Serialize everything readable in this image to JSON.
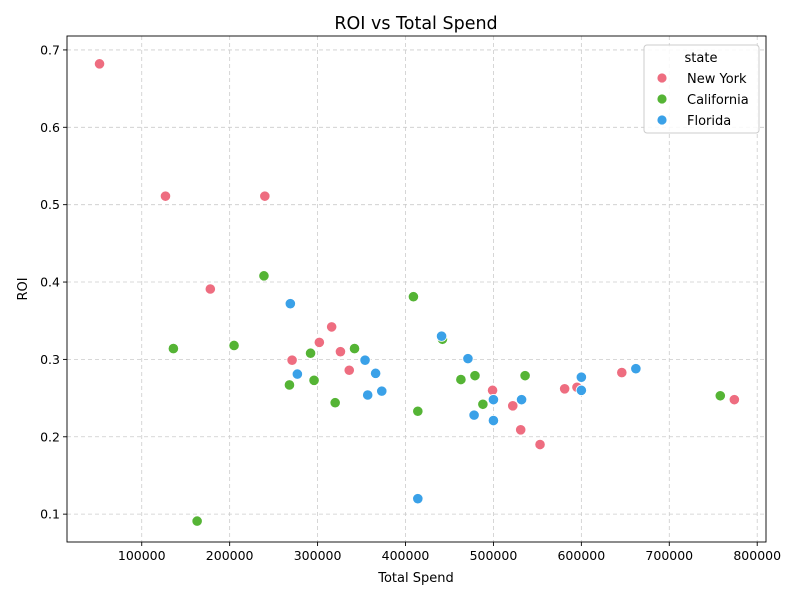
{
  "chart_data": {
    "type": "scatter",
    "title": "ROI vs Total Spend",
    "xlabel": "Total Spend",
    "ylabel": "ROI",
    "xlim": [
      15000,
      810000
    ],
    "ylim": [
      0.064,
      0.718
    ],
    "xticks": [
      100000,
      200000,
      300000,
      400000,
      500000,
      600000,
      700000,
      800000
    ],
    "yticks": [
      0.1,
      0.2,
      0.3,
      0.4,
      0.5,
      0.6,
      0.7
    ],
    "grid": true,
    "legend": {
      "title": "state",
      "placement": "top-right"
    },
    "series": [
      {
        "name": "New York",
        "color": "#ee6d80",
        "points": [
          [
            52000,
            0.682
          ],
          [
            127000,
            0.511
          ],
          [
            240000,
            0.511
          ],
          [
            178000,
            0.391
          ],
          [
            316000,
            0.342
          ],
          [
            302000,
            0.322
          ],
          [
            326000,
            0.31
          ],
          [
            271000,
            0.299
          ],
          [
            336000,
            0.286
          ],
          [
            499000,
            0.26
          ],
          [
            522000,
            0.24
          ],
          [
            531000,
            0.209
          ],
          [
            553000,
            0.19
          ],
          [
            581000,
            0.262
          ],
          [
            595000,
            0.264
          ],
          [
            646000,
            0.283
          ],
          [
            774000,
            0.248
          ]
        ]
      },
      {
        "name": "California",
        "color": "#55b435",
        "points": [
          [
            239000,
            0.408
          ],
          [
            409000,
            0.381
          ],
          [
            136000,
            0.314
          ],
          [
            205000,
            0.318
          ],
          [
            342000,
            0.314
          ],
          [
            292000,
            0.308
          ],
          [
            442000,
            0.326
          ],
          [
            268000,
            0.267
          ],
          [
            296000,
            0.273
          ],
          [
            320000,
            0.244
          ],
          [
            414000,
            0.233
          ],
          [
            463000,
            0.274
          ],
          [
            479000,
            0.279
          ],
          [
            488000,
            0.242
          ],
          [
            536000,
            0.279
          ],
          [
            758000,
            0.253
          ],
          [
            163000,
            0.091
          ]
        ]
      },
      {
        "name": "Florida",
        "color": "#3aa1e8",
        "points": [
          [
            269000,
            0.372
          ],
          [
            441000,
            0.33
          ],
          [
            354000,
            0.299
          ],
          [
            277000,
            0.281
          ],
          [
            366000,
            0.282
          ],
          [
            373000,
            0.259
          ],
          [
            357000,
            0.254
          ],
          [
            471000,
            0.301
          ],
          [
            500000,
            0.248
          ],
          [
            478000,
            0.228
          ],
          [
            500000,
            0.221
          ],
          [
            532000,
            0.248
          ],
          [
            600000,
            0.277
          ],
          [
            600000,
            0.26
          ],
          [
            662000,
            0.288
          ],
          [
            414000,
            0.12
          ]
        ]
      }
    ]
  }
}
